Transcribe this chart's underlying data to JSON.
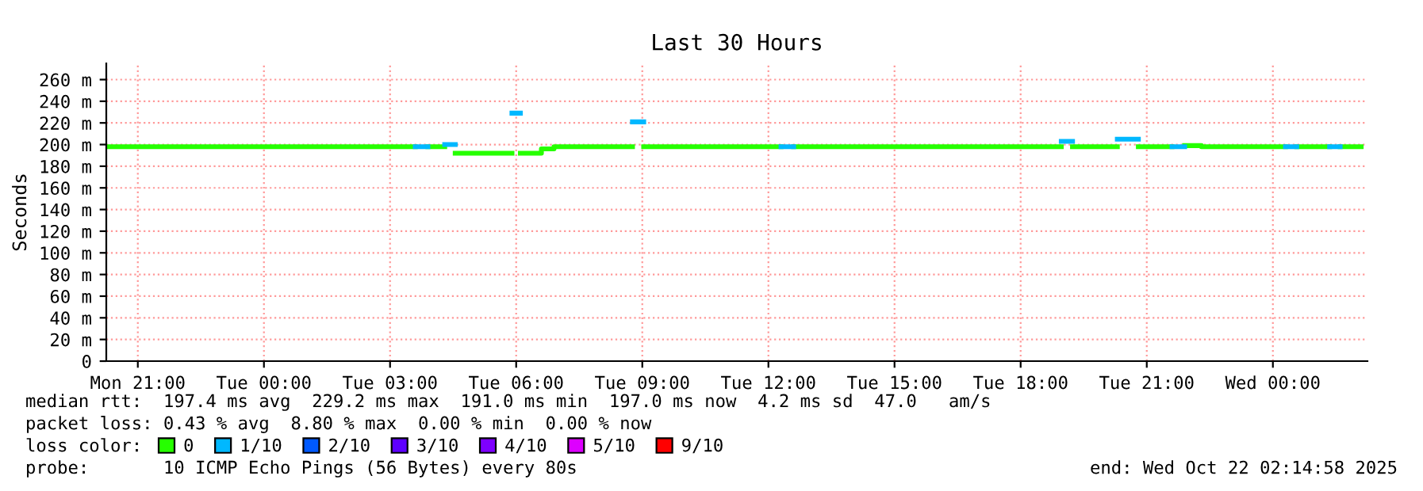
{
  "chart_data": {
    "type": "step",
    "title": "Last 30 Hours",
    "ylabel": "Seconds",
    "legend_title": "loss color:",
    "legend": "bottom",
    "grid": true,
    "line_style": "solid",
    "marker": "none",
    "xlim": [
      "2025-10-20T20:15",
      "2025-10-22T02:15"
    ],
    "xticks": [
      {
        "value": "2025-10-20T21:00",
        "label": "Mon 21:00"
      },
      {
        "value": "2025-10-21T00:00",
        "label": "Tue 00:00"
      },
      {
        "value": "2025-10-21T03:00",
        "label": "Tue 03:00"
      },
      {
        "value": "2025-10-21T06:00",
        "label": "Tue 06:00"
      },
      {
        "value": "2025-10-21T09:00",
        "label": "Tue 09:00"
      },
      {
        "value": "2025-10-21T12:00",
        "label": "Tue 12:00"
      },
      {
        "value": "2025-10-21T15:00",
        "label": "Tue 15:00"
      },
      {
        "value": "2025-10-21T18:00",
        "label": "Tue 18:00"
      },
      {
        "value": "2025-10-21T21:00",
        "label": "Tue 21:00"
      },
      {
        "value": "2025-10-22T00:00",
        "label": "Wed 00:00"
      }
    ],
    "ylim": [
      0,
      275
    ],
    "yticks": [
      0,
      {
        "value": 20,
        "label": "20 m"
      },
      {
        "value": 40,
        "label": "40 m"
      },
      {
        "value": 60,
        "label": "60 m"
      },
      {
        "value": 80,
        "label": "80 m"
      },
      {
        "value": 100,
        "label": "100 m"
      },
      {
        "value": 120,
        "label": "120 m"
      },
      {
        "value": 140,
        "label": "140 m"
      },
      {
        "value": 160,
        "label": "160 m"
      },
      {
        "value": 180,
        "label": "180 m"
      },
      {
        "value": 200,
        "label": "200 m"
      },
      {
        "value": 220,
        "label": "220 m"
      },
      {
        "value": 240,
        "label": "240 m"
      },
      {
        "value": 260,
        "label": "260 m"
      }
    ],
    "series": [
      {
        "name": "0",
        "color": "#26ff00",
        "x": [
          "2025-10-20T20:15",
          "2025-10-21T03:36",
          "2025-10-21T03:54",
          "2025-10-21T04:18",
          "2025-10-21T04:33",
          "2025-10-21T05:54",
          "2025-10-21T06:06",
          "2025-10-21T06:36",
          "2025-10-21T06:54",
          "2025-10-21T08:46",
          "2025-10-21T09:02",
          "2025-10-21T12:18",
          "2025-10-21T12:36",
          "2025-10-21T18:58",
          "2025-10-21T19:14",
          "2025-10-21T20:18",
          "2025-10-21T20:48",
          "2025-10-21T21:36",
          "2025-10-21T21:54",
          "2025-10-21T22:18",
          "2025-10-22T00:18",
          "2025-10-22T00:34",
          "2025-10-22T01:21",
          "2025-10-22T01:36",
          "2025-10-22T02:06"
        ],
        "values": [
          198,
          null,
          198,
          null,
          192,
          null,
          192,
          196,
          198,
          null,
          198,
          null,
          198,
          null,
          198,
          null,
          198,
          null,
          199,
          198,
          null,
          198,
          null,
          198,
          198
        ]
      },
      {
        "name": "1/10",
        "color": "#00b8ff",
        "x": [
          "2025-10-21T03:36",
          "2025-10-21T03:54",
          "2025-10-21T04:18",
          "2025-10-21T04:33",
          "2025-10-21T05:54",
          "2025-10-21T06:06",
          "2025-10-21T08:46",
          "2025-10-21T09:02",
          "2025-10-21T12:18",
          "2025-10-21T12:36",
          "2025-10-21T18:58",
          "2025-10-21T19:14",
          "2025-10-21T20:18",
          "2025-10-21T20:48",
          "2025-10-21T21:36",
          "2025-10-21T21:54",
          "2025-10-22T00:18",
          "2025-10-22T00:34",
          "2025-10-22T01:21",
          "2025-10-22T01:36"
        ],
        "values": [
          198,
          null,
          200,
          null,
          229,
          null,
          221,
          null,
          198,
          null,
          203,
          null,
          205,
          null,
          198,
          null,
          198,
          null,
          198,
          198
        ]
      },
      {
        "name": "2/10",
        "color": "#0059ff"
      },
      {
        "name": "3/10",
        "color": "#5e00ff"
      },
      {
        "name": "4/10",
        "color": "#7e00ff"
      },
      {
        "name": "5/10",
        "color": "#dd00ff"
      },
      {
        "name": "9/10",
        "color": "#ff0000"
      }
    ],
    "annotations": [
      "median rtt:  197.4 ms avg  229.2 ms max  191.0 ms min  197.0 ms now  4.2 ms sd  47.0   am/s",
      "packet loss: 0.43 % avg  8.80 % max  0.00 % min  0.00 % now",
      "probe:       10 ICMP Echo Pings (56 Bytes) every 80s",
      "end: Wed Oct 22 02:14:58 2025"
    ]
  }
}
